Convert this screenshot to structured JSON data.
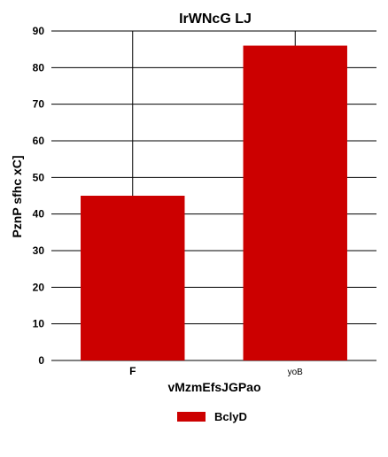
{
  "chart_data": {
    "type": "bar",
    "title": "IrWNcG LJ",
    "xlabel": "vMzmEfsJGPao",
    "ylabel": "PznP sfhc xC]",
    "categories": [
      "F",
      "yoB"
    ],
    "series": [
      {
        "name": "BclyD",
        "values": [
          45,
          86
        ],
        "color": "#cc0000"
      }
    ],
    "ylim": [
      0,
      90
    ],
    "yticks": [
      0,
      10,
      20,
      30,
      40,
      50,
      60,
      70,
      80,
      90
    ],
    "grid": true,
    "legend_position": "bottom-center"
  }
}
